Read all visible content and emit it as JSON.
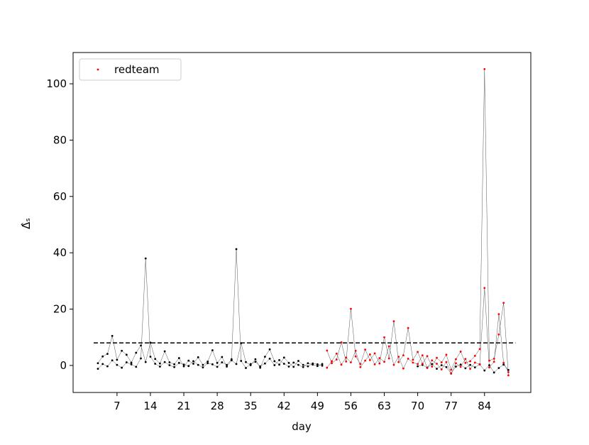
{
  "chart_data": {
    "type": "line",
    "xlabel": "day",
    "ylabel": "Δ̂ₛ",
    "xlim": [
      -2.2,
      93.7
    ],
    "ylim": [
      -9.6,
      111.1
    ],
    "xticks": [
      7,
      14,
      21,
      28,
      35,
      42,
      49,
      56,
      63,
      70,
      77,
      84
    ],
    "yticks": [
      0,
      20,
      40,
      60,
      80,
      100
    ],
    "threshold": 8,
    "legend": "upper left",
    "series": [
      {
        "color": "#000000",
        "x": [
          3,
          4,
          5,
          6,
          7,
          8,
          9,
          10,
          11,
          12,
          13,
          14,
          15,
          16,
          17,
          18,
          19,
          20,
          21,
          22,
          23,
          24,
          25,
          26,
          27,
          28,
          29,
          30,
          31,
          32,
          33,
          34,
          35,
          36,
          37,
          38,
          39,
          40,
          41,
          42,
          43,
          44,
          45,
          46,
          47,
          48,
          49,
          50
        ],
        "values": [
          -1.2,
          0.5,
          -0.3,
          1.8,
          0.2,
          -0.8,
          1.1,
          0.4,
          -0.5,
          2.5,
          38,
          3.1,
          0.6,
          -0.4,
          1.2,
          0.1,
          -0.6,
          0.9,
          0.3,
          -0.2,
          1.5,
          0.2,
          -0.7,
          0.8,
          0.4,
          -0.5,
          1.1,
          0.2,
          2.2,
          41.3,
          1.6,
          -0.9,
          0.5,
          1.3,
          -0.3,
          0.7,
          2.4,
          0.1,
          1.9,
          0.6,
          -0.4,
          1.0,
          0.2,
          -0.6,
          0.8,
          0.3,
          -0.2,
          0.5
        ]
      },
      {
        "color": "#000000",
        "x": [
          3,
          4,
          5,
          6,
          7,
          8,
          9,
          10,
          11,
          12,
          13,
          14,
          15,
          16,
          17,
          18,
          19,
          20,
          21,
          22,
          23,
          24,
          25,
          26,
          27,
          28,
          29,
          30,
          31,
          32,
          33,
          34,
          35,
          36,
          37,
          38,
          39,
          40,
          41,
          42,
          43,
          44,
          45,
          46,
          47,
          48,
          49,
          50
        ],
        "values": [
          0.8,
          3.2,
          4.1,
          10.5,
          2.0,
          5.2,
          3.8,
          1.0,
          4.5,
          7.1,
          1.2,
          8.1,
          2.3,
          0.7,
          5.0,
          1.1,
          0.4,
          2.6,
          -0.3,
          1.7,
          0.6,
          2.9,
          0.2,
          1.4,
          5.4,
          0.9,
          3.0,
          -0.4,
          1.8,
          0.5,
          7.9,
          1.2,
          0.1,
          2.2,
          -0.8,
          3.1,
          5.7,
          1.5,
          0.3,
          2.8,
          0.9,
          -0.5,
          1.6,
          0.2,
          -0.3,
          0.7,
          0.4,
          -0.1
        ]
      },
      {
        "color": "#000000",
        "x": [
          70,
          71,
          72,
          73,
          74,
          75,
          76,
          77,
          78,
          79,
          80,
          81,
          82,
          83,
          84,
          85,
          86,
          87,
          88,
          89
        ],
        "values": [
          -0.3,
          0.2,
          -0.8,
          0.5,
          -1.2,
          0.1,
          -0.6,
          -2.9,
          -0.4,
          0.3,
          -1.0,
          0.2,
          -0.7,
          0.4,
          -1.8,
          0.1,
          -2.5,
          -0.9,
          0.3,
          -1.6
        ]
      },
      {
        "name": "redteam",
        "color": "#ff0000",
        "x": [
          51,
          52,
          53,
          54,
          55,
          56,
          57,
          58,
          59,
          60,
          61,
          62,
          63,
          64,
          65,
          66,
          67,
          68,
          69,
          70,
          71,
          72,
          73,
          74,
          75,
          76,
          77,
          78,
          79,
          80,
          81,
          82,
          83,
          84,
          85,
          86,
          87,
          88,
          89
        ],
        "values": [
          5.3,
          0.8,
          2.1,
          8.2,
          1.4,
          20.1,
          3.2,
          0.5,
          5.6,
          1.9,
          4.3,
          0.7,
          10.0,
          2.5,
          15.7,
          1.2,
          3.6,
          13.3,
          2.0,
          4.8,
          0.6,
          3.3,
          -0.4,
          2.7,
          1.1,
          3.8,
          -1.5,
          2.2,
          4.9,
          0.9,
          1.5,
          3.4,
          5.8,
          105.2,
          1.7,
          2.4,
          11.0,
          22.2,
          -3.5
        ]
      },
      {
        "color": "#ff0000",
        "x": [
          51,
          52,
          53,
          54,
          55,
          56,
          57,
          58,
          59,
          60,
          61,
          62,
          63,
          64,
          65,
          66,
          67,
          68,
          69,
          70,
          71,
          72,
          73,
          74,
          75,
          76,
          77,
          78,
          79,
          80,
          81,
          82,
          83,
          84,
          85,
          86,
          87,
          88,
          89
        ],
        "values": [
          -0.8,
          1.5,
          4.2,
          0.3,
          2.8,
          1.1,
          5.2,
          -0.6,
          1.7,
          3.9,
          0.4,
          2.6,
          1.3,
          6.8,
          0.2,
          3.1,
          -1.1,
          2.4,
          1.0,
          0.5,
          3.6,
          -0.9,
          1.8,
          0.6,
          -1.4,
          1.2,
          -2.8,
          0.8,
          -0.5,
          2.3,
          -1.2,
          1.0,
          0.4,
          27.5,
          -0.7,
          1.3,
          18.2,
          0.9,
          -2.4
        ]
      }
    ]
  }
}
